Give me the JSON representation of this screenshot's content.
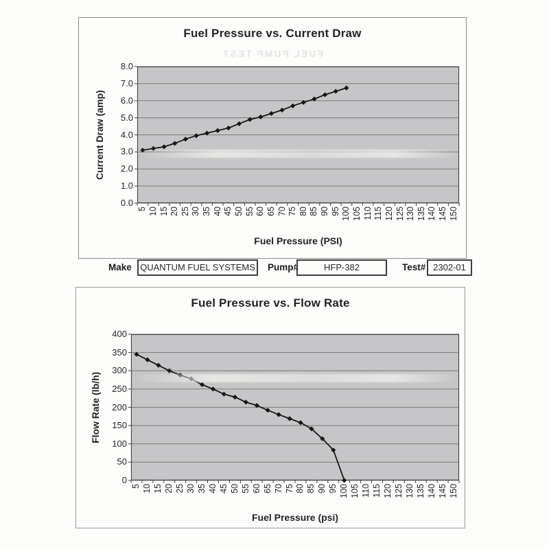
{
  "ghost_text": "FUEL PUMP TEST",
  "meta_row": {
    "make_label": "Make",
    "make_value": "QUANTUM FUEL SYSTEMS",
    "pump_label": "Pump#",
    "pump_value": "HFP-382",
    "test_label": "Test#",
    "test_value": "2302-01"
  },
  "colors": {
    "series": "#161616",
    "plot_bg": "#c6c6c8",
    "gridline": "#7a7a7a",
    "plot_border": "#4a4a4a",
    "axis_tick": "#3a3a3a"
  },
  "chart_data": [
    {
      "type": "line",
      "title": "Fuel Pressure vs. Current Draw",
      "xlabel": "Fuel Pressure (PSI)",
      "ylabel": "Current Draw (amp)",
      "categories": [
        "5",
        "10",
        "15",
        "20",
        "25",
        "30",
        "35",
        "40",
        "45",
        "50",
        "55",
        "60",
        "65",
        "70",
        "75",
        "80",
        "85",
        "90",
        "95",
        "100",
        "105",
        "110",
        "115",
        "120",
        "125",
        "130",
        "135",
        "140",
        "145",
        "150"
      ],
      "x": [
        5,
        10,
        15,
        20,
        25,
        30,
        35,
        40,
        45,
        50,
        55,
        60,
        65,
        70,
        75,
        80,
        85,
        90,
        95,
        100
      ],
      "values": [
        3.1,
        3.2,
        3.3,
        3.5,
        3.75,
        3.95,
        4.1,
        4.25,
        4.4,
        4.65,
        4.9,
        5.05,
        5.25,
        5.45,
        5.7,
        5.9,
        6.1,
        6.35,
        6.55,
        6.75
      ],
      "ylim": [
        0,
        8
      ],
      "ytick_step": 1.0,
      "ytick_labels": [
        "0.0",
        "1.0",
        "2.0",
        "3.0",
        "4.0",
        "5.0",
        "6.0",
        "7.0",
        "8.0"
      ],
      "grid": true,
      "legend": "none",
      "marker": "diamond"
    },
    {
      "type": "line",
      "title": "Fuel Pressure vs. Flow Rate",
      "xlabel": "Fuel Pressure (psi)",
      "ylabel": "Flow Rate (lb/h)",
      "categories": [
        "5",
        "10",
        "15",
        "20",
        "25",
        "30",
        "35",
        "40",
        "45",
        "50",
        "55",
        "60",
        "65",
        "70",
        "75",
        "80",
        "85",
        "90",
        "95",
        "100",
        "105",
        "110",
        "115",
        "120",
        "125",
        "130",
        "135",
        "140",
        "145",
        "150"
      ],
      "x": [
        5,
        10,
        15,
        20,
        25,
        30,
        35,
        40,
        45,
        50,
        55,
        60,
        65,
        70,
        75,
        80,
        85,
        90,
        95,
        100
      ],
      "values": [
        345,
        330,
        315,
        300,
        288,
        278,
        262,
        250,
        236,
        228,
        214,
        205,
        192,
        180,
        169,
        158,
        141,
        114,
        83,
        0
      ],
      "ylim": [
        0,
        400
      ],
      "ytick_step": 50,
      "ytick_labels": [
        "0",
        "50",
        "100",
        "150",
        "200",
        "250",
        "300",
        "350",
        "400"
      ],
      "grid": true,
      "legend": "none",
      "marker": "diamond"
    }
  ]
}
